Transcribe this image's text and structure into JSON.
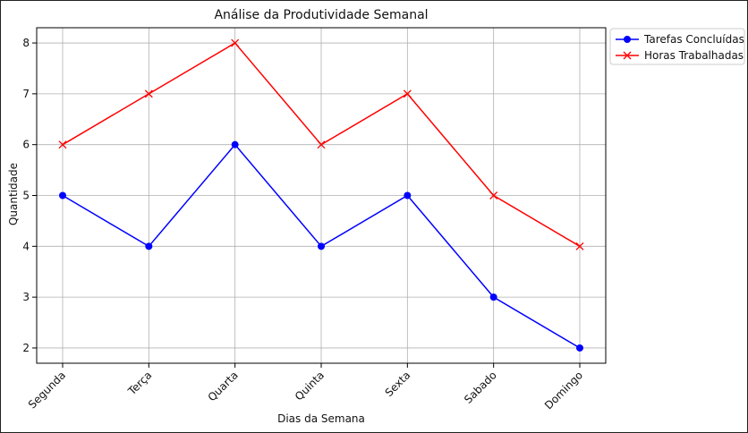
{
  "chart_data": {
    "type": "line",
    "title": "Análise da Produtividade Semanal",
    "xlabel": "Dias da Semana",
    "ylabel": "Quantidade",
    "categories": [
      "Segunda",
      "Terça",
      "Quarta",
      "Quinta",
      "Sexta",
      "Sabado",
      "Domingo"
    ],
    "ylim": [
      1.7,
      8.3
    ],
    "yticks": [
      2,
      3,
      4,
      5,
      6,
      7,
      8
    ],
    "grid": true,
    "legend_position": "outside-top-right",
    "series": [
      {
        "name": "Tarefas Concluídas",
        "values": [
          5,
          4,
          6,
          4,
          5,
          3,
          2
        ],
        "color": "#0000ff",
        "marker": "circle"
      },
      {
        "name": "Horas Trabalhadas",
        "values": [
          6,
          7,
          8,
          6,
          7,
          5,
          4
        ],
        "color": "#ff0000",
        "marker": "x"
      }
    ]
  }
}
